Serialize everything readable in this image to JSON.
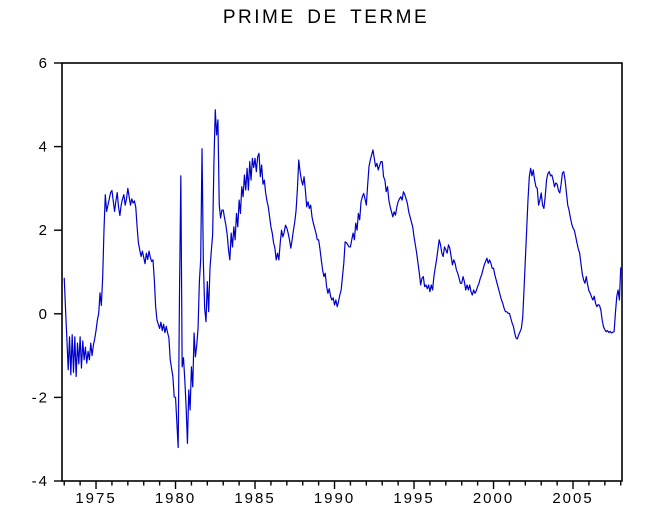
{
  "chart_data": {
    "type": "line",
    "title": "PRIME DE TERME",
    "series_name": "PRIME DE TERME",
    "line_color": "#0000cc",
    "axis_color": "#000000",
    "background_color": "#ffffff",
    "grid": false,
    "legend": "none",
    "ylim": [
      -4,
      6
    ],
    "xlim": [
      1972.86,
      2008.08
    ],
    "yticks": [
      "6",
      "4",
      "2",
      "0",
      "-2",
      "-4"
    ],
    "ytick_values": [
      6,
      4,
      2,
      0,
      -2,
      -4
    ],
    "xticks": [
      "1975",
      "1980",
      "1985",
      "1990",
      "1995",
      "2000",
      "2005"
    ],
    "xtick_values": [
      1975,
      1980,
      1985,
      1990,
      1995,
      2000,
      2005
    ],
    "minor_xtick_every_years": 1,
    "x_start": 1973.0,
    "points_per_year": 12,
    "values": [
      0.85,
      0.1,
      -0.6,
      -1.34,
      -0.55,
      -1.46,
      -0.5,
      -1.4,
      -0.55,
      -1.5,
      -0.7,
      -1.2,
      -0.55,
      -1.3,
      -0.65,
      -1.1,
      -0.8,
      -1.18,
      -0.9,
      -1.1,
      -0.7,
      -1.0,
      -0.75,
      -0.6,
      -0.4,
      -0.15,
      0.0,
      0.5,
      0.2,
      0.85,
      2.0,
      2.85,
      2.45,
      2.6,
      2.75,
      2.9,
      2.95,
      2.7,
      2.45,
      2.7,
      2.9,
      2.55,
      2.35,
      2.6,
      2.75,
      2.85,
      2.6,
      2.75,
      3.0,
      2.8,
      2.6,
      2.75,
      2.65,
      2.7,
      2.55,
      2.08,
      1.69,
      1.53,
      1.37,
      1.5,
      1.35,
      1.2,
      1.45,
      1.3,
      1.5,
      1.35,
      1.25,
      1.29,
      0.81,
      0.17,
      -0.15,
      -0.25,
      -0.35,
      -0.2,
      -0.4,
      -0.25,
      -0.45,
      -0.3,
      -0.45,
      -0.58,
      -1.1,
      -1.3,
      -1.5,
      -1.99,
      -2.0,
      -2.6,
      -3.2,
      0.5,
      3.3,
      -1.27,
      -1.05,
      -1.58,
      -2.23,
      -3.1,
      -1.82,
      -2.3,
      -1.27,
      -1.75,
      -0.46,
      -1.03,
      -0.75,
      -0.35,
      0.77,
      1.3,
      3.95,
      1.24,
      0.13,
      -0.19,
      0.77,
      0.05,
      1.09,
      1.5,
      1.89,
      3.64,
      4.88,
      4.28,
      4.64,
      2.6,
      2.29,
      2.48,
      2.48,
      2.29,
      2.12,
      1.89,
      1.53,
      1.29,
      1.93,
      1.6,
      2.08,
      1.77,
      2.4,
      2.08,
      2.72,
      2.4,
      3.04,
      2.8,
      3.32,
      2.96,
      3.48,
      2.96,
      3.64,
      3.2,
      3.72,
      3.5,
      3.72,
      3.4,
      3.76,
      3.84,
      3.28,
      3.56,
      3.1,
      3.2,
      2.9,
      2.7,
      2.56,
      2.32,
      2.08,
      1.93,
      1.7,
      1.57,
      1.29,
      1.45,
      1.29,
      1.69,
      2.0,
      1.84,
      1.95,
      2.12,
      2.05,
      1.93,
      1.77,
      1.57,
      1.77,
      2.0,
      2.2,
      2.48,
      3.0,
      3.68,
      3.4,
      3.2,
      3.08,
      3.28,
      2.96,
      2.56,
      2.68,
      2.52,
      2.6,
      2.32,
      2.17,
      2.05,
      1.93,
      1.77,
      1.77,
      1.55,
      1.29,
      1.05,
      0.89,
      0.97,
      0.65,
      0.49,
      0.6,
      0.42,
      0.33,
      0.38,
      0.21,
      0.33,
      0.17,
      0.29,
      0.45,
      0.57,
      0.89,
      1.21,
      1.72,
      1.7,
      1.65,
      1.6,
      1.6,
      1.77,
      1.93,
      1.77,
      2.17,
      2.0,
      2.4,
      2.25,
      2.68,
      2.8,
      2.88,
      2.75,
      2.6,
      3.08,
      3.52,
      3.68,
      3.8,
      3.92,
      3.72,
      3.52,
      3.6,
      3.44,
      3.55,
      3.64,
      3.64,
      3.28,
      3.2,
      2.92,
      3.04,
      2.72,
      2.56,
      2.44,
      2.32,
      2.44,
      2.36,
      2.55,
      2.68,
      2.75,
      2.8,
      2.72,
      2.92,
      2.85,
      2.75,
      2.64,
      2.44,
      2.32,
      2.2,
      2.08,
      1.84,
      1.65,
      1.45,
      1.21,
      0.97,
      0.69,
      0.85,
      0.89,
      0.65,
      0.69,
      0.6,
      0.69,
      0.53,
      0.69,
      0.57,
      0.89,
      1.1,
      1.29,
      1.53,
      1.77,
      1.65,
      1.45,
      1.37,
      1.6,
      1.53,
      1.45,
      1.65,
      1.57,
      1.37,
      1.17,
      1.29,
      1.21,
      1.05,
      0.97,
      0.85,
      0.73,
      0.73,
      0.89,
      0.77,
      0.57,
      0.69,
      0.57,
      0.69,
      0.53,
      0.45,
      0.57,
      0.49,
      0.55,
      0.65,
      0.73,
      0.85,
      0.93,
      1.05,
      1.17,
      1.25,
      1.33,
      1.21,
      1.29,
      1.21,
      1.09,
      1.09,
      0.93,
      0.81,
      0.69,
      0.57,
      0.45,
      0.33,
      0.25,
      0.13,
      0.05,
      0.05,
      0.01,
      0.01,
      -0.1,
      -0.22,
      -0.3,
      -0.46,
      -0.58,
      -0.6,
      -0.5,
      -0.43,
      -0.35,
      -0.1,
      0.57,
      1.29,
      2.0,
      2.72,
      3.28,
      3.48,
      3.3,
      3.44,
      3.2,
      3.04,
      3.0,
      2.6,
      2.72,
      2.89,
      2.6,
      2.52,
      2.8,
      3.2,
      3.35,
      3.4,
      3.3,
      3.32,
      3.2,
      3.04,
      3.13,
      3.1,
      2.95,
      2.89,
      3.1,
      3.37,
      3.4,
      3.2,
      2.9,
      2.6,
      2.48,
      2.3,
      2.15,
      2.05,
      2.0,
      1.85,
      1.69,
      1.55,
      1.45,
      1.2,
      0.95,
      0.81,
      0.73,
      0.89,
      0.7,
      0.55,
      0.49,
      0.4,
      0.33,
      0.42,
      0.25,
      0.17,
      0.22,
      0.2,
      0.09,
      -0.15,
      -0.31,
      -0.38,
      -0.43,
      -0.4,
      -0.45,
      -0.42,
      -0.46,
      -0.44,
      -0.43,
      0.02,
      0.41,
      0.57,
      0.33,
      1.1
    ]
  }
}
